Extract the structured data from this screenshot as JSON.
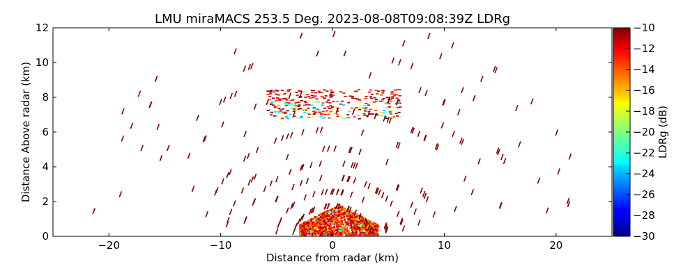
{
  "chart_data": {
    "type": "heatmap",
    "title": "LMU miraMACS 253.5 Deg. 2023-08-08T09:08:39Z  LDRg",
    "xlabel": "Distance from radar (km)",
    "ylabel": "Distance Above radar  (km)",
    "xlim": [
      -25,
      25
    ],
    "ylim": [
      0,
      12
    ],
    "xticks": [
      -20,
      -10,
      0,
      10,
      20
    ],
    "xtick_labels": [
      "−20",
      "−10",
      "0",
      "10",
      "20"
    ],
    "yticks": [
      0,
      2,
      4,
      6,
      8,
      10,
      12
    ],
    "ytick_labels": [
      "0",
      "2",
      "4",
      "6",
      "8",
      "10",
      "12"
    ],
    "colorbar": {
      "label": "LDRg (dB)",
      "range": [
        -30,
        -10
      ],
      "ticks": [
        -10,
        -12,
        -14,
        -16,
        -18,
        -20,
        -22,
        -24,
        -26,
        -28,
        -30
      ],
      "tick_labels": [
        "−10",
        "−12",
        "−14",
        "−16",
        "−18",
        "−20",
        "−22",
        "−24",
        "−26",
        "−28",
        "−30"
      ],
      "colormap": "jet"
    },
    "features": [
      {
        "name": "near-surface clutter",
        "x_range": [
          -3,
          4
        ],
        "y_range": [
          0,
          1.8
        ],
        "ldr_range": [
          -16,
          -10
        ]
      },
      {
        "name": "cloud layer",
        "x_range": [
          -6,
          6
        ],
        "y_range": [
          6.8,
          8.5
        ],
        "ldr_range": [
          -25,
          -10
        ]
      },
      {
        "name": "scattered insect/noise echoes",
        "x_range": [
          -23,
          22
        ],
        "y_range": [
          0.3,
          12
        ],
        "ldr": -10
      }
    ]
  }
}
